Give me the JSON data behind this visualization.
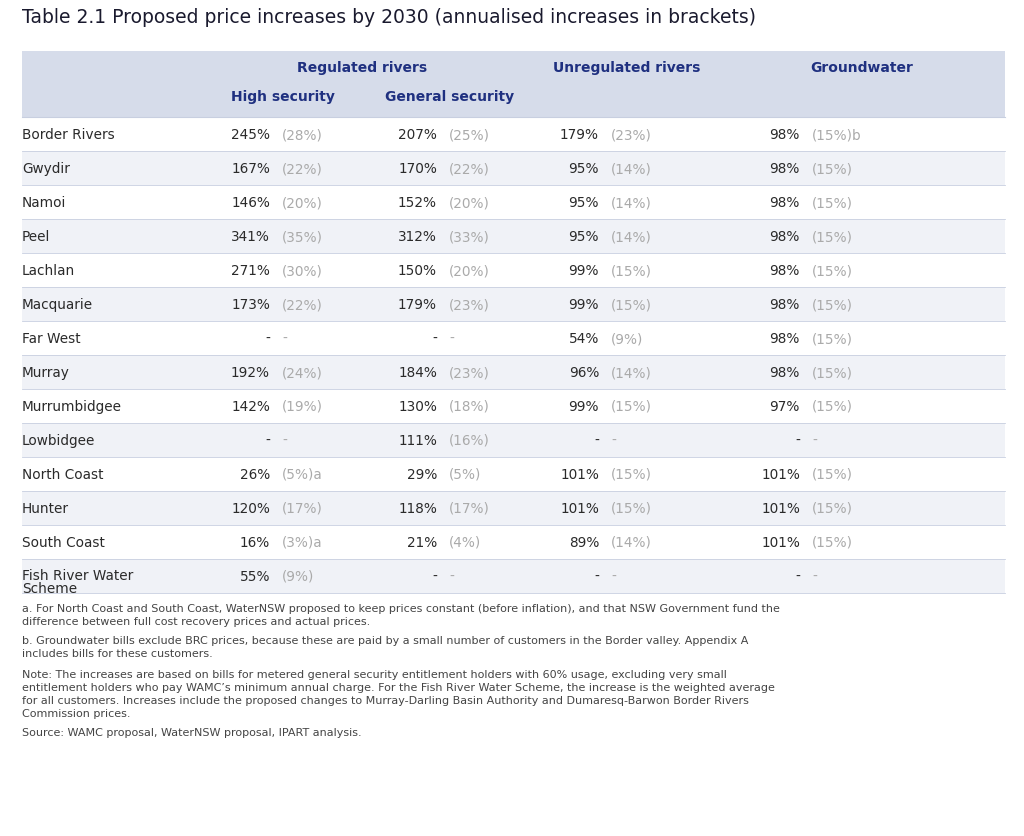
{
  "title": "Table 2.1 Proposed price increases by 2030 (annualised increases in brackets)",
  "title_color": "#1a1a2e",
  "background_color": "#ffffff",
  "table_header_bg": "#d6dcea",
  "row_bg_white": "#ffffff",
  "row_bg_light": "#f0f2f7",
  "header_text_color": "#1f3080",
  "body_text_color": "#2a2a2a",
  "annot_color": "#aaaaaa",
  "separator_color": "#c8cfe0",
  "rows": [
    [
      "Border Rivers",
      "245%",
      "(28%)",
      "207%",
      "(25%)",
      "179%",
      "(23%)",
      "98%",
      "(15%)b"
    ],
    [
      "Gwydir",
      "167%",
      "(22%)",
      "170%",
      "(22%)",
      "95%",
      "(14%)",
      "98%",
      "(15%)"
    ],
    [
      "Namoi",
      "146%",
      "(20%)",
      "152%",
      "(20%)",
      "95%",
      "(14%)",
      "98%",
      "(15%)"
    ],
    [
      "Peel",
      "341%",
      "(35%)",
      "312%",
      "(33%)",
      "95%",
      "(14%)",
      "98%",
      "(15%)"
    ],
    [
      "Lachlan",
      "271%",
      "(30%)",
      "150%",
      "(20%)",
      "99%",
      "(15%)",
      "98%",
      "(15%)"
    ],
    [
      "Macquarie",
      "173%",
      "(22%)",
      "179%",
      "(23%)",
      "99%",
      "(15%)",
      "98%",
      "(15%)"
    ],
    [
      "Far West",
      "-",
      "-",
      "-",
      "-",
      "54%",
      "(9%)",
      "98%",
      "(15%)"
    ],
    [
      "Murray",
      "192%",
      "(24%)",
      "184%",
      "(23%)",
      "96%",
      "(14%)",
      "98%",
      "(15%)"
    ],
    [
      "Murrumbidgee",
      "142%",
      "(19%)",
      "130%",
      "(18%)",
      "99%",
      "(15%)",
      "97%",
      "(15%)"
    ],
    [
      "Lowbidgee",
      "-",
      "-",
      "111%",
      "(16%)",
      "-",
      "-",
      "-",
      "-"
    ],
    [
      "North Coast",
      "26%",
      "(5%)a",
      "29%",
      "(5%)",
      "101%",
      "(15%)",
      "101%",
      "(15%)"
    ],
    [
      "Hunter",
      "120%",
      "(17%)",
      "118%",
      "(17%)",
      "101%",
      "(15%)",
      "101%",
      "(15%)"
    ],
    [
      "South Coast",
      "16%",
      "(3%)a",
      "21%",
      "(4%)",
      "89%",
      "(14%)",
      "101%",
      "(15%)"
    ],
    [
      "Fish River Water\nScheme",
      "55%",
      "(9%)",
      "-",
      "-",
      "-",
      "-",
      "-",
      "-"
    ]
  ],
  "footnote_a": "a. For North Coast and South Coast, WaterNSW proposed to keep prices constant (before inflation), and that NSW Government fund the difference between full cost recovery prices and actual prices.",
  "footnote_b": "b. Groundwater bills exclude BRC prices, because these are paid by a small number of customers in the Border valley. Appendix A includes bills for these customers.",
  "footnote_note": "Note: The increases are based on bills for metered general security entitlement holders with 60% usage, excluding very small entitlement holders who pay WAMC’s minimum annual charge. For the Fish River Water Scheme, the increase is the weighted average for all customers. Increases include the proposed changes to Murray-Darling Basin Authority and Dumaresq-Barwon Border Rivers Commission prices.",
  "footnote_source": "Source: WAMC proposal, WaterNSW proposal, IPART analysis."
}
